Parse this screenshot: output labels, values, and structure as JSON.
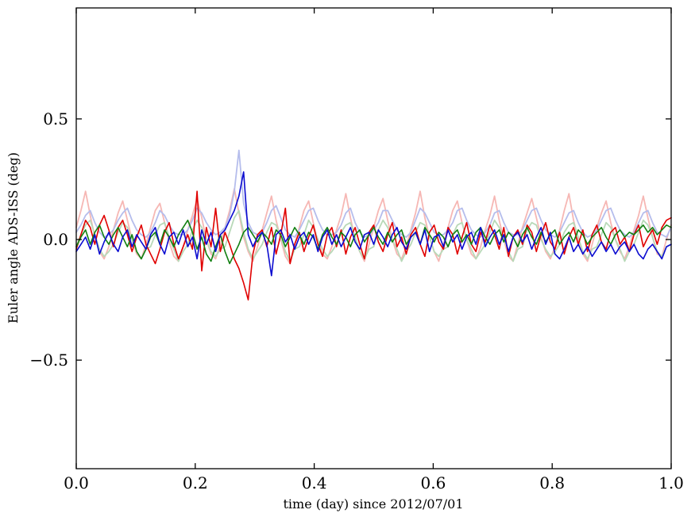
{
  "figure": {
    "background": "#ffffff",
    "frame_color": "#000000"
  },
  "chart_data": {
    "type": "line",
    "title": "",
    "xlabel": "time (day) since 2012/07/01",
    "ylabel": "Euler angle ADS-ISS (deg)",
    "xlim": [
      0.0,
      1.0
    ],
    "ylim": [
      -0.95,
      0.96
    ],
    "xticks": [
      0.0,
      0.2,
      0.4,
      0.6,
      0.8,
      1.0
    ],
    "xtick_labels": [
      "0.0",
      "0.2",
      "0.4",
      "0.6",
      "0.8",
      "1.0"
    ],
    "yticks": [
      -0.5,
      0.0,
      0.5
    ],
    "ytick_labels": [
      "−0.5",
      "0.0",
      "0.5"
    ],
    "grid": false,
    "legend": null,
    "x_sampling_note": "x values are uniform from 0 to 1 over each series (index/(n-1))",
    "series": [
      {
        "name": "pale-red",
        "color": "#f6b7b4",
        "width": 1.8,
        "values": [
          0.05,
          0.12,
          0.2,
          0.1,
          0.01,
          -0.05,
          -0.08,
          -0.03,
          0.04,
          0.11,
          0.16,
          0.08,
          0.0,
          -0.06,
          -0.08,
          -0.02,
          0.05,
          0.12,
          0.15,
          0.07,
          -0.01,
          -0.07,
          -0.09,
          -0.03,
          0.04,
          0.1,
          0.17,
          0.09,
          0.0,
          -0.06,
          -0.08,
          -0.02,
          0.05,
          0.12,
          0.21,
          0.11,
          0.01,
          -0.05,
          -0.09,
          -0.03,
          0.04,
          0.11,
          0.18,
          0.08,
          0.0,
          -0.07,
          -0.1,
          -0.02,
          0.05,
          0.12,
          0.16,
          0.07,
          -0.01,
          -0.06,
          -0.08,
          -0.03,
          0.04,
          0.1,
          0.19,
          0.09,
          0.0,
          -0.05,
          -0.09,
          -0.02,
          0.05,
          0.12,
          0.17,
          0.08,
          0.0,
          -0.06,
          -0.08,
          -0.03,
          0.04,
          0.11,
          0.2,
          0.09,
          0.01,
          -0.05,
          -0.09,
          -0.02,
          0.05,
          0.12,
          0.16,
          0.07,
          0.0,
          -0.06,
          -0.08,
          -0.03,
          0.04,
          0.1,
          0.18,
          0.08,
          0.0,
          -0.07,
          -0.09,
          -0.02,
          0.05,
          0.11,
          0.17,
          0.09,
          0.01,
          -0.05,
          -0.08,
          -0.03,
          0.04,
          0.12,
          0.19,
          0.08,
          0.0,
          -0.06,
          -0.09,
          -0.02,
          0.05,
          0.11,
          0.16,
          0.07,
          0.0,
          -0.05,
          -0.08,
          -0.03,
          0.04,
          0.1,
          0.18,
          0.09,
          0.01,
          -0.06,
          -0.07,
          0.0,
          0.06
        ]
      },
      {
        "name": "pale-green",
        "color": "#b8d9b8",
        "width": 1.8,
        "values": [
          -0.03,
          0.02,
          0.06,
          0.08,
          0.02,
          -0.04,
          -0.07,
          -0.05,
          -0.02,
          0.03,
          0.07,
          0.05,
          0.0,
          -0.05,
          -0.08,
          -0.04,
          -0.03,
          0.02,
          0.06,
          0.07,
          0.01,
          -0.04,
          -0.09,
          -0.05,
          -0.02,
          0.04,
          0.08,
          0.05,
          0.0,
          -0.05,
          -0.07,
          -0.04,
          -0.03,
          0.03,
          0.09,
          0.12,
          0.03,
          -0.04,
          -0.08,
          -0.05,
          -0.02,
          0.03,
          0.07,
          0.06,
          0.01,
          -0.05,
          -0.09,
          -0.04,
          -0.03,
          0.02,
          0.08,
          0.05,
          0.0,
          -0.04,
          -0.07,
          -0.05,
          -0.02,
          0.03,
          0.06,
          0.07,
          0.01,
          -0.05,
          -0.08,
          -0.04,
          -0.03,
          0.04,
          0.08,
          0.05,
          0.0,
          -0.04,
          -0.09,
          -0.05,
          -0.02,
          0.03,
          0.07,
          0.06,
          0.01,
          -0.05,
          -0.07,
          -0.04,
          -0.03,
          0.02,
          0.06,
          0.07,
          0.0,
          -0.04,
          -0.08,
          -0.05,
          -0.02,
          0.03,
          0.08,
          0.05,
          0.01,
          -0.05,
          -0.09,
          -0.04,
          -0.03,
          0.04,
          0.07,
          0.06,
          0.0,
          -0.04,
          -0.07,
          -0.05,
          -0.02,
          0.03,
          0.06,
          0.07,
          0.01,
          -0.05,
          -0.08,
          -0.04,
          -0.03,
          0.02,
          0.07,
          0.05,
          0.0,
          -0.04,
          -0.09,
          -0.05,
          -0.02,
          0.03,
          0.08,
          0.06,
          0.01,
          -0.05,
          -0.07,
          -0.03,
          -0.02
        ]
      },
      {
        "name": "pale-blue",
        "color": "#b5bdec",
        "width": 1.8,
        "values": [
          0.03,
          0.06,
          0.1,
          0.12,
          0.07,
          0.03,
          0.01,
          0.02,
          0.04,
          0.08,
          0.11,
          0.13,
          0.08,
          0.04,
          0.02,
          0.01,
          0.03,
          0.07,
          0.12,
          0.1,
          0.06,
          0.03,
          0.02,
          0.02,
          0.04,
          0.08,
          0.13,
          0.11,
          0.07,
          0.04,
          0.02,
          0.03,
          0.05,
          0.1,
          0.2,
          0.37,
          0.15,
          0.07,
          0.03,
          0.02,
          0.03,
          0.07,
          0.12,
          0.14,
          0.09,
          0.04,
          0.02,
          0.01,
          0.04,
          0.08,
          0.12,
          0.13,
          0.08,
          0.04,
          0.02,
          0.02,
          0.03,
          0.06,
          0.11,
          0.13,
          0.07,
          0.03,
          0.01,
          0.02,
          0.04,
          0.07,
          0.12,
          0.12,
          0.08,
          0.04,
          0.02,
          0.01,
          0.03,
          0.08,
          0.13,
          0.11,
          0.07,
          0.03,
          0.02,
          0.02,
          0.04,
          0.07,
          0.12,
          0.13,
          0.08,
          0.04,
          0.02,
          0.01,
          0.03,
          0.06,
          0.11,
          0.12,
          0.07,
          0.03,
          0.02,
          0.02,
          0.04,
          0.08,
          0.12,
          0.13,
          0.08,
          0.04,
          0.02,
          0.01,
          0.03,
          0.07,
          0.11,
          0.12,
          0.07,
          0.03,
          0.01,
          0.02,
          0.04,
          0.08,
          0.12,
          0.13,
          0.08,
          0.04,
          0.02,
          0.01,
          0.03,
          0.07,
          0.11,
          0.12,
          0.07,
          0.03,
          0.02,
          0.01,
          0.05
        ]
      },
      {
        "name": "red",
        "color": "#e00000",
        "width": 1.6,
        "values": [
          -0.04,
          0.02,
          0.08,
          0.05,
          -0.02,
          0.06,
          0.1,
          0.04,
          -0.03,
          0.05,
          0.08,
          0.02,
          -0.05,
          0.01,
          0.06,
          -0.02,
          -0.06,
          -0.1,
          -0.04,
          0.03,
          0.07,
          -0.02,
          -0.08,
          -0.03,
          0.02,
          -0.04,
          0.2,
          -0.13,
          0.05,
          -0.03,
          0.13,
          -0.05,
          0.03,
          -0.02,
          -0.08,
          -0.12,
          -0.18,
          -0.25,
          -0.06,
          0.02,
          0.04,
          -0.03,
          0.05,
          -0.06,
          0.02,
          0.13,
          -0.1,
          -0.02,
          0.03,
          -0.05,
          0.01,
          0.06,
          -0.02,
          -0.07,
          0.02,
          0.05,
          -0.03,
          0.04,
          -0.06,
          0.01,
          0.05,
          -0.02,
          -0.08,
          0.03,
          0.06,
          -0.01,
          -0.05,
          0.02,
          0.07,
          -0.03,
          0.01,
          -0.06,
          0.02,
          0.05,
          -0.02,
          -0.07,
          0.03,
          0.06,
          -0.01,
          -0.04,
          0.05,
          0.02,
          -0.06,
          0.01,
          0.07,
          -0.02,
          -0.05,
          0.03,
          -0.01,
          0.06,
          0.02,
          -0.04,
          0.05,
          -0.07,
          0.01,
          0.04,
          -0.02,
          0.06,
          0.03,
          -0.05,
          0.02,
          0.07,
          -0.01,
          -0.04,
          0.03,
          -0.06,
          0.01,
          0.05,
          -0.02,
          0.04,
          -0.05,
          0.02,
          0.06,
          -0.01,
          -0.04,
          0.03,
          0.05,
          -0.02,
          0.01,
          -0.05,
          0.02,
          0.06,
          -0.03,
          0.01,
          0.04,
          -0.02,
          0.05,
          0.08,
          0.09
        ]
      },
      {
        "name": "green",
        "color": "#128012",
        "width": 1.6,
        "values": [
          -0.03,
          0.01,
          0.04,
          -0.02,
          0.03,
          0.06,
          0.01,
          -0.02,
          0.02,
          0.05,
          0.01,
          -0.03,
          0.02,
          -0.05,
          -0.08,
          -0.04,
          0.01,
          0.03,
          -0.02,
          0.04,
          0.01,
          -0.03,
          0.02,
          0.05,
          0.08,
          0.03,
          -0.04,
          0.01,
          -0.06,
          -0.09,
          -0.03,
          0.02,
          -0.05,
          -0.1,
          -0.06,
          -0.02,
          0.03,
          0.05,
          0.02,
          -0.01,
          0.03,
          0.01,
          -0.02,
          0.04,
          0.02,
          -0.03,
          0.01,
          0.05,
          0.02,
          -0.02,
          0.03,
          0.01,
          -0.04,
          0.02,
          0.05,
          0.01,
          -0.02,
          0.03,
          0.01,
          -0.03,
          0.02,
          0.04,
          -0.01,
          0.02,
          0.05,
          0.01,
          -0.02,
          0.03,
          -0.01,
          0.02,
          0.04,
          -0.02,
          0.01,
          0.03,
          -0.02,
          0.05,
          0.02,
          -0.01,
          0.03,
          0.01,
          -0.03,
          0.02,
          0.04,
          -0.01,
          0.02,
          -0.02,
          0.03,
          0.05,
          0.01,
          -0.02,
          0.02,
          0.04,
          -0.01,
          0.03,
          0.01,
          -0.03,
          0.02,
          0.05,
          0.01,
          -0.02,
          0.03,
          -0.01,
          0.02,
          0.04,
          -0.02,
          0.01,
          0.03,
          -0.01,
          0.04,
          0.02,
          -0.02,
          0.01,
          0.03,
          0.05,
          0.01,
          -0.02,
          0.02,
          0.04,
          0.01,
          0.03,
          0.02,
          0.04,
          0.06,
          0.03,
          0.05,
          0.02,
          0.04,
          0.06,
          0.05
        ]
      },
      {
        "name": "blue",
        "color": "#0b0bd0",
        "width": 1.6,
        "values": [
          -0.05,
          -0.02,
          0.01,
          -0.04,
          0.02,
          -0.06,
          -0.01,
          0.03,
          -0.02,
          -0.05,
          0.01,
          0.04,
          -0.03,
          0.02,
          -0.01,
          -0.04,
          0.02,
          0.05,
          -0.02,
          -0.06,
          0.01,
          0.03,
          -0.02,
          0.04,
          -0.03,
          0.01,
          -0.08,
          0.04,
          -0.02,
          0.03,
          -0.05,
          0.02,
          0.04,
          0.08,
          0.12,
          0.18,
          0.28,
          0.02,
          -0.03,
          0.01,
          0.03,
          -0.02,
          -0.15,
          0.02,
          0.04,
          -0.01,
          0.02,
          -0.04,
          0.01,
          0.03,
          -0.02,
          0.02,
          -0.05,
          0.01,
          0.04,
          -0.02,
          0.02,
          -0.03,
          0.01,
          0.05,
          -0.01,
          -0.04,
          0.02,
          0.03,
          -0.02,
          0.04,
          0.01,
          -0.03,
          0.02,
          0.05,
          -0.01,
          -0.04,
          0.01,
          0.03,
          -0.02,
          0.04,
          -0.05,
          0.01,
          0.02,
          -0.03,
          0.04,
          -0.01,
          0.02,
          -0.04,
          0.01,
          0.03,
          -0.02,
          0.05,
          -0.03,
          0.01,
          0.04,
          -0.02,
          0.02,
          -0.05,
          0.01,
          0.03,
          -0.01,
          0.02,
          -0.04,
          0.01,
          0.05,
          -0.02,
          0.03,
          -0.06,
          -0.08,
          -0.04,
          0.01,
          -0.05,
          -0.02,
          -0.06,
          -0.03,
          -0.07,
          -0.04,
          -0.01,
          -0.05,
          -0.02,
          -0.06,
          -0.03,
          -0.01,
          -0.05,
          -0.02,
          -0.06,
          -0.08,
          -0.04,
          -0.02,
          -0.05,
          -0.08,
          -0.03,
          -0.02
        ]
      }
    ]
  }
}
